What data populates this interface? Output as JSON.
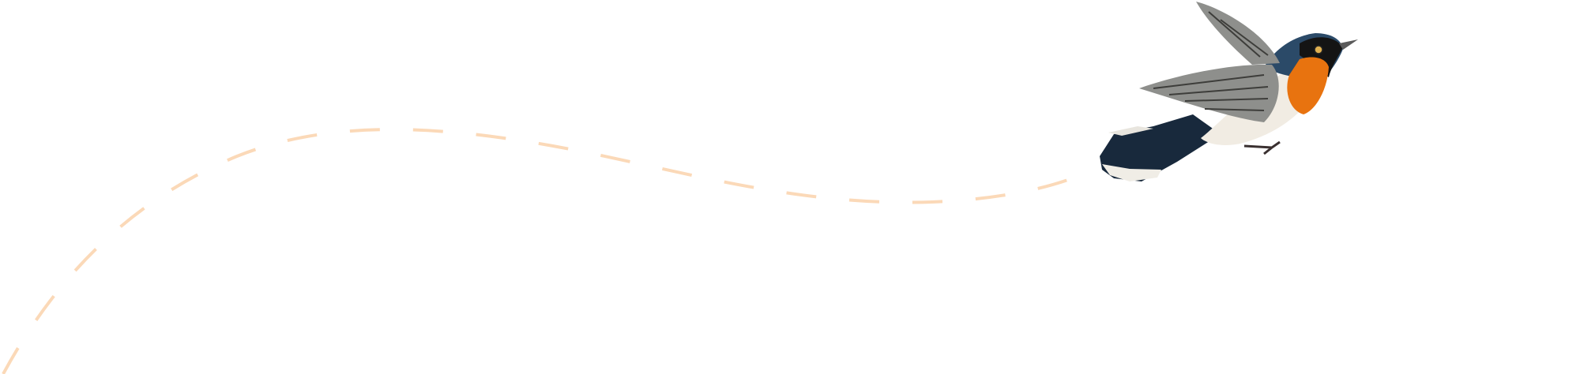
{
  "illustration": {
    "subject": "bird-illustration",
    "colors": {
      "flight_path": "#fbd9b8",
      "bird_back": "#2b4a68",
      "bird_throat": "#e8730f",
      "bird_belly": "#f1ece3",
      "bird_wing": "#8e8f8c",
      "bird_tail": "#18293c"
    }
  }
}
